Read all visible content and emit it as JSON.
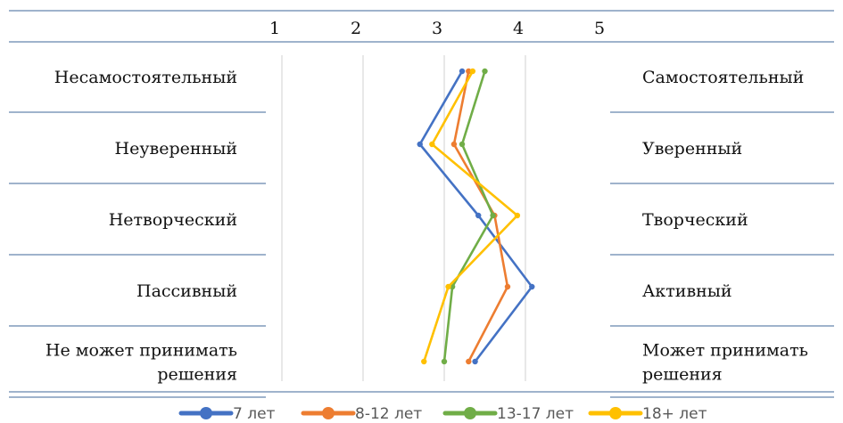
{
  "chart_data": {
    "type": "line",
    "orientation": "vertical-profile",
    "x_ticks": [
      1,
      2,
      3,
      4,
      5
    ],
    "xlim": [
      1,
      5
    ],
    "rows": [
      {
        "left": [
          "Несамостоятельный"
        ],
        "right": [
          "Самостоятельный"
        ]
      },
      {
        "left": [
          "Неуверенный"
        ],
        "right": [
          "Уверенный"
        ]
      },
      {
        "left": [
          "Нетворческий"
        ],
        "right": [
          "Творческий"
        ]
      },
      {
        "left": [
          "Пассивный"
        ],
        "right": [
          "Активный"
        ]
      },
      {
        "left": [
          "Не может принимать",
          "решения"
        ],
        "right": [
          "Может принимать",
          "решения"
        ]
      }
    ],
    "series": [
      {
        "name": "7 лет",
        "color": "#4472c4",
        "values": [
          3.22,
          2.7,
          3.42,
          4.08,
          3.38
        ]
      },
      {
        "name": "8-12 лет",
        "color": "#ed7d31",
        "values": [
          3.3,
          3.12,
          3.62,
          3.78,
          3.3
        ]
      },
      {
        "name": "13-17 лет",
        "color": "#70ad47",
        "values": [
          3.5,
          3.22,
          3.6,
          3.1,
          3.0
        ]
      },
      {
        "name": "18+ лет",
        "color": "#ffc000",
        "values": [
          3.35,
          2.85,
          3.9,
          3.05,
          2.75
        ]
      }
    ],
    "grid": true,
    "legend": "bottom"
  }
}
